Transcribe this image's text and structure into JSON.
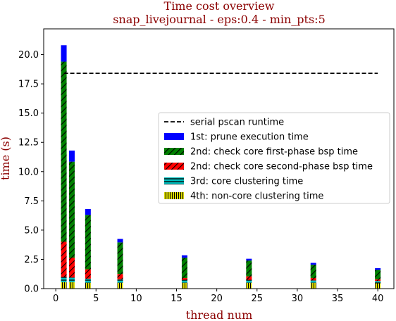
{
  "chart_data": {
    "type": "bar",
    "stacked": true,
    "title": "Time cost overview",
    "subtitle": "snap_livejournal - eps:0.4 - min_pts:5",
    "xlabel": "thread num",
    "ylabel": "time (s)",
    "xlim": [
      -1.5,
      42
    ],
    "ylim": [
      0,
      22.2
    ],
    "xticks": [
      0,
      5,
      10,
      15,
      20,
      25,
      30,
      35,
      40
    ],
    "yticks": [
      0.0,
      2.5,
      5.0,
      7.5,
      10.0,
      12.5,
      15.0,
      17.5,
      20.0
    ],
    "x": [
      1,
      2,
      4,
      8,
      16,
      24,
      32,
      40
    ],
    "reference_line": {
      "name": "serial pscan runtime",
      "value": 18.4,
      "x_range": [
        1,
        40
      ],
      "color": "#000000"
    },
    "series": [
      {
        "name": "4th: non-core clustering time",
        "color": "#ffff00",
        "hatch": "vertical",
        "values": [
          0.55,
          0.55,
          0.5,
          0.5,
          0.5,
          0.5,
          0.5,
          0.45
        ]
      },
      {
        "name": "3rd: core clustering time",
        "color": "#00bfbf",
        "hatch": "horizontal",
        "values": [
          0.45,
          0.4,
          0.35,
          0.3,
          0.25,
          0.25,
          0.2,
          0.2
        ]
      },
      {
        "name": "2nd: check core second-phase bsp time",
        "color": "#ff0000",
        "hatch": "diagonal",
        "values": [
          3.0,
          1.7,
          0.8,
          0.45,
          0.15,
          0.3,
          0.2,
          0.15
        ]
      },
      {
        "name": "2nd: check core first-phase bsp time",
        "color": "#008000",
        "hatch": "diagonal",
        "values": [
          15.4,
          8.2,
          4.65,
          2.7,
          1.75,
          1.35,
          1.15,
          0.8
        ]
      },
      {
        "name": "1st: prune execution time",
        "color": "#0000ff",
        "hatch": "none",
        "values": [
          1.4,
          0.95,
          0.5,
          0.3,
          0.2,
          0.15,
          0.15,
          0.15
        ]
      }
    ],
    "legend": {
      "placement": "center-right",
      "order": [
        "serial pscan runtime",
        "1st: prune execution time",
        "2nd: check core first-phase bsp time",
        "2nd: check core second-phase bsp time",
        "3rd: core clustering time",
        "4th: non-core clustering time"
      ]
    },
    "grid": false
  }
}
